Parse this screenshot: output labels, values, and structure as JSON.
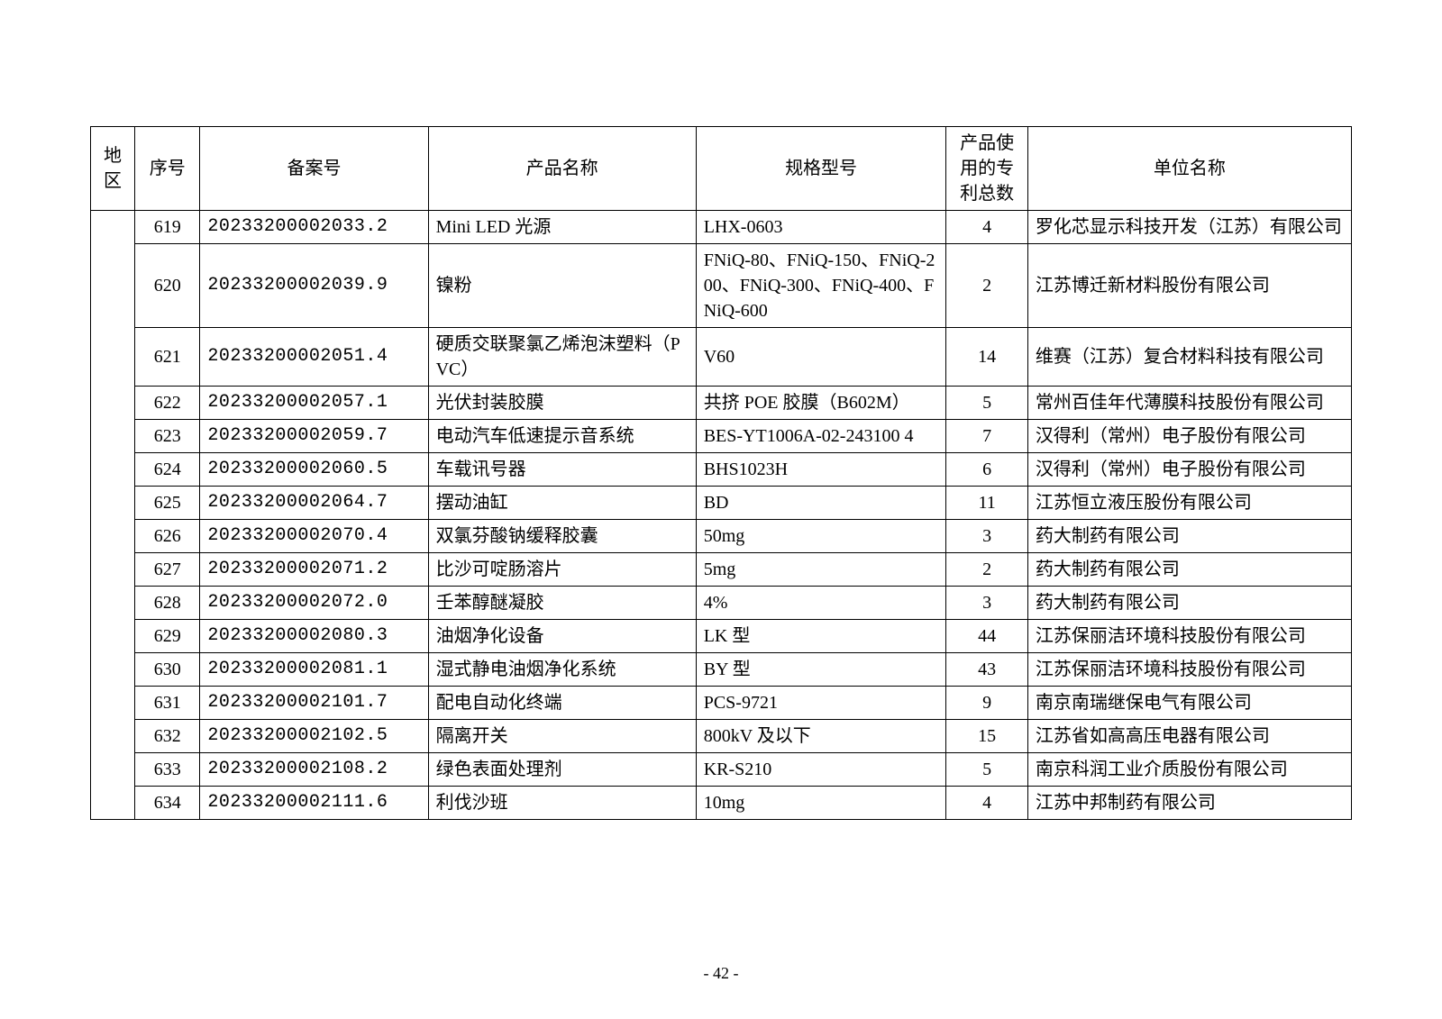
{
  "page_number": "- 42 -",
  "columns": {
    "region": "地区",
    "seq": "序号",
    "record": "备案号",
    "product": "产品名称",
    "spec": "规格型号",
    "patents": "产品使用的专利总数",
    "company": "单位名称"
  },
  "rows": [
    {
      "seq": "619",
      "record": "20233200002033.2",
      "product": "Mini LED 光源",
      "spec": "LHX-0603",
      "patents": "4",
      "company": "罗化芯显示科技开发（江苏）有限公司"
    },
    {
      "seq": "620",
      "record": "20233200002039.9",
      "product": "镍粉",
      "spec": "FNiQ-80、FNiQ-150、FNiQ-200、FNiQ-300、FNiQ-400、FNiQ-600",
      "patents": "2",
      "company": "江苏博迁新材料股份有限公司"
    },
    {
      "seq": "621",
      "record": "20233200002051.4",
      "product": "硬质交联聚氯乙烯泡沫塑料（PVC）",
      "spec": "V60",
      "patents": "14",
      "company": "维赛（江苏）复合材料科技有限公司"
    },
    {
      "seq": "622",
      "record": "20233200002057.1",
      "product": "光伏封装胶膜",
      "spec": "共挤 POE 胶膜（B602M）",
      "patents": "5",
      "company": "常州百佳年代薄膜科技股份有限公司"
    },
    {
      "seq": "623",
      "record": "20233200002059.7",
      "product": "电动汽车低速提示音系统",
      "spec": "BES-YT1006A-02-243100 4",
      "patents": "7",
      "company": "汉得利（常州）电子股份有限公司"
    },
    {
      "seq": "624",
      "record": "20233200002060.5",
      "product": "车载讯号器",
      "spec": "BHS1023H",
      "patents": "6",
      "company": "汉得利（常州）电子股份有限公司"
    },
    {
      "seq": "625",
      "record": "20233200002064.7",
      "product": "摆动油缸",
      "spec": "BD",
      "patents": "11",
      "company": "江苏恒立液压股份有限公司"
    },
    {
      "seq": "626",
      "record": "20233200002070.4",
      "product": "双氯芬酸钠缓释胶囊",
      "spec": "50mg",
      "patents": "3",
      "company": "药大制药有限公司"
    },
    {
      "seq": "627",
      "record": "20233200002071.2",
      "product": "比沙可啶肠溶片",
      "spec": "5mg",
      "patents": "2",
      "company": "药大制药有限公司"
    },
    {
      "seq": "628",
      "record": "20233200002072.0",
      "product": "壬苯醇醚凝胶",
      "spec": "4%",
      "patents": "3",
      "company": "药大制药有限公司"
    },
    {
      "seq": "629",
      "record": "20233200002080.3",
      "product": "油烟净化设备",
      "spec": "LK 型",
      "patents": "44",
      "company": "江苏保丽洁环境科技股份有限公司"
    },
    {
      "seq": "630",
      "record": "20233200002081.1",
      "product": "湿式静电油烟净化系统",
      "spec": "BY 型",
      "patents": "43",
      "company": "江苏保丽洁环境科技股份有限公司"
    },
    {
      "seq": "631",
      "record": "20233200002101.7",
      "product": "配电自动化终端",
      "spec": "PCS-9721",
      "patents": "9",
      "company": "南京南瑞继保电气有限公司"
    },
    {
      "seq": "632",
      "record": "20233200002102.5",
      "product": "隔离开关",
      "spec": "800kV 及以下",
      "patents": "15",
      "company": "江苏省如高高压电器有限公司"
    },
    {
      "seq": "633",
      "record": "20233200002108.2",
      "product": "绿色表面处理剂",
      "spec": "KR-S210",
      "patents": "5",
      "company": "南京科润工业介质股份有限公司"
    },
    {
      "seq": "634",
      "record": "20233200002111.6",
      "product": "利伐沙班",
      "spec": "10mg",
      "patents": "4",
      "company": "江苏中邦制药有限公司"
    }
  ]
}
